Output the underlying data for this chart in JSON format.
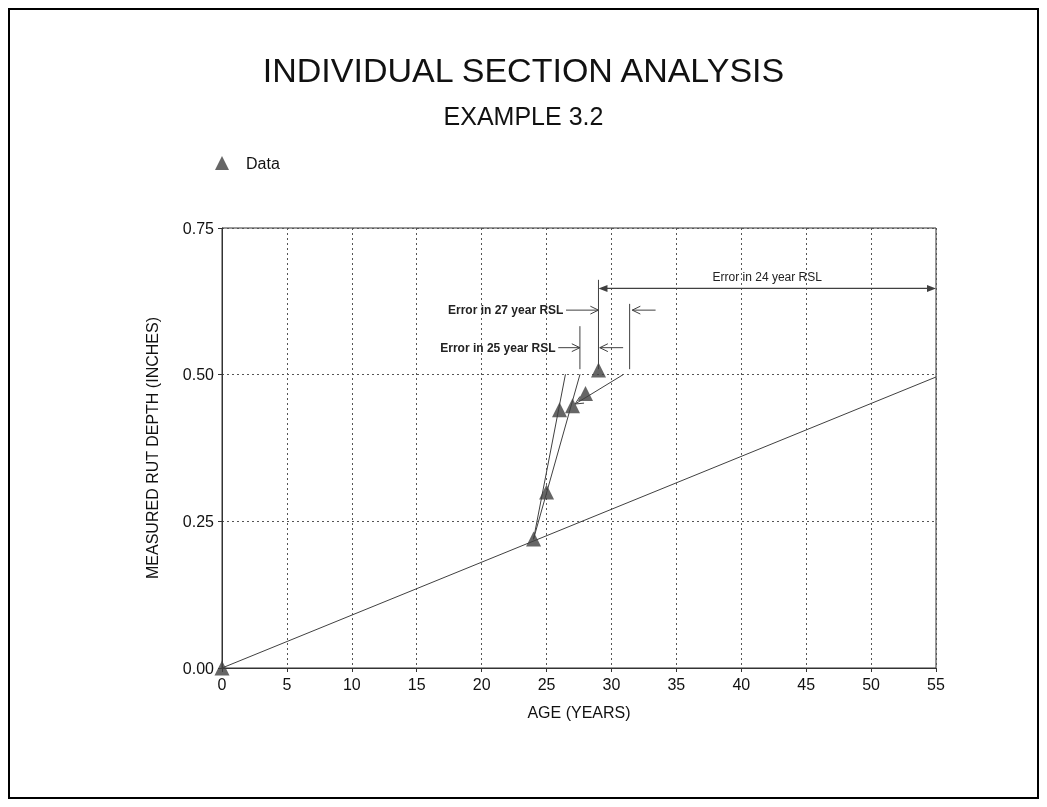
{
  "chart_data": {
    "type": "scatter",
    "title": "INDIVIDUAL SECTION ANALYSIS",
    "subtitle": "EXAMPLE 3.2",
    "xlabel": "AGE (YEARS)",
    "ylabel": "MEASURED RUT DEPTH (INCHES)",
    "xlim": [
      0,
      55
    ],
    "xticks": [
      0,
      5,
      10,
      15,
      20,
      25,
      30,
      35,
      40,
      45,
      50,
      55
    ],
    "ylim": [
      0,
      0.75
    ],
    "yticks": [
      {
        "value": 0,
        "label": "0.00"
      },
      {
        "value": 0.25,
        "label": "0.25"
      },
      {
        "value": 0.5,
        "label": "0.50"
      },
      {
        "value": 0.75,
        "label": "0.75"
      }
    ],
    "grid": true,
    "legend": "top left",
    "marker": "triangle",
    "series": [
      {
        "name": "Data",
        "color": "#404040",
        "x": [
          0,
          24,
          25,
          26,
          27,
          28,
          29
        ],
        "values": [
          0,
          0.22,
          0.3,
          0.44,
          0.447,
          0.468,
          0.508
        ]
      },
      {
        "type": "line",
        "marker": "none",
        "color": "#404040",
        "x": [
          0,
          55
        ],
        "values": [
          0,
          0.496
        ]
      },
      {
        "type": "line",
        "marker": "none",
        "color": "#404040",
        "x": [
          24,
          26.45
        ],
        "values": [
          0.22,
          0.5
        ]
      },
      {
        "type": "line",
        "marker": "none",
        "color": "#404040",
        "x": [
          24,
          27.57
        ],
        "values": [
          0.22,
          0.5
        ]
      },
      {
        "type": "line",
        "marker": "none",
        "color": "#404040",
        "x": [
          27.57,
          27.57
        ],
        "values": [
          0.51,
          0.582
        ]
      },
      {
        "type": "line",
        "marker": "none",
        "color": "#404040",
        "x": [
          29,
          29
        ],
        "values": [
          0.51,
          0.661
        ]
      },
      {
        "type": "line",
        "marker": "none",
        "color": "#404040",
        "x": [
          31.4,
          31.4
        ],
        "values": [
          0.51,
          0.62
        ]
      }
    ],
    "annotations": [
      "Error in 24 year RSL",
      "Error in 27 year RSL",
      "Error in 25 year RSL"
    ]
  }
}
